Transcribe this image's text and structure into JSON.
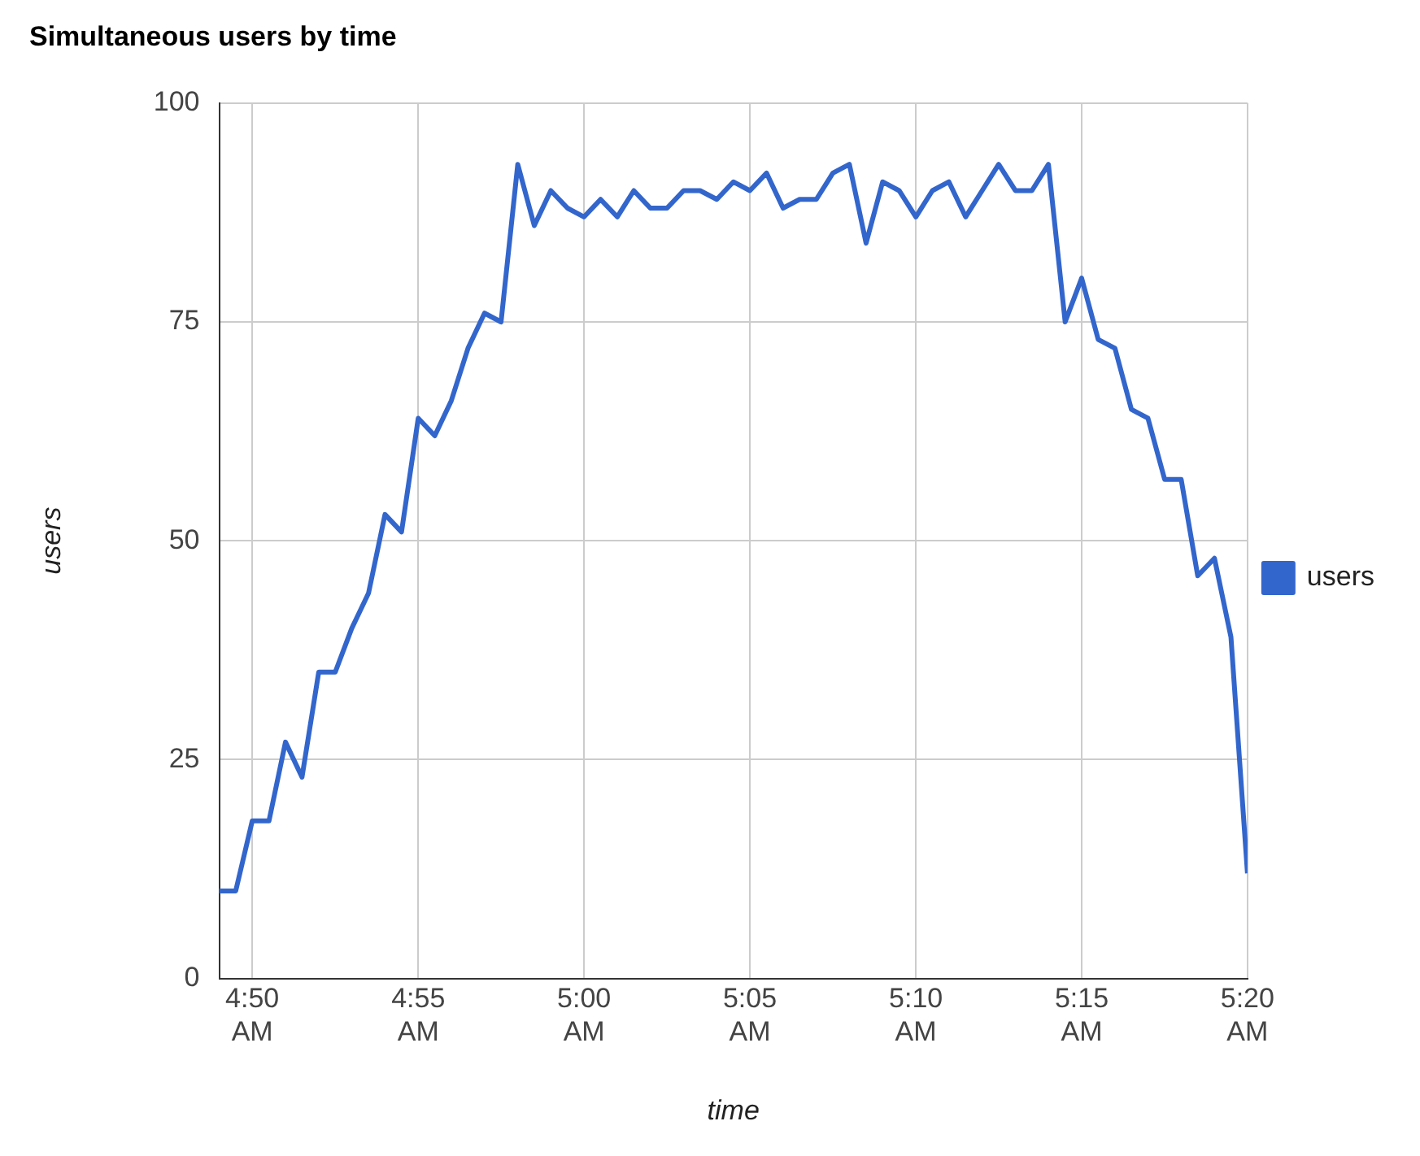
{
  "chart_data": {
    "type": "line",
    "title": "Simultaneous users by time",
    "xlabel": "time",
    "ylabel": "users",
    "x": [
      4.8167,
      4.825,
      4.8333,
      4.8417,
      4.85,
      4.8583,
      4.8667,
      4.875,
      4.8833,
      4.8917,
      4.9,
      4.9083,
      4.9167,
      4.925,
      4.9333,
      4.9417,
      4.95,
      4.9583,
      4.9667,
      4.975,
      4.9833,
      4.9917,
      5.0,
      5.0083,
      5.0167,
      5.025,
      5.0333,
      5.0417,
      5.05,
      5.0583,
      5.0667,
      5.075,
      5.0833,
      5.0917,
      5.1,
      5.1083,
      5.1167,
      5.125,
      5.1333,
      5.1417,
      5.15,
      5.1583,
      5.1667,
      5.175,
      5.1833,
      5.1917,
      5.2,
      5.2083,
      5.2167,
      5.225,
      5.2333,
      5.2417,
      5.25,
      5.2583,
      5.2667,
      5.275,
      5.2833,
      5.2917,
      5.3,
      5.3083,
      5.3167,
      5.325,
      5.3333
    ],
    "series": [
      {
        "name": "users",
        "color": "#3366cc",
        "values": [
          10,
          10,
          18,
          18,
          27,
          23,
          35,
          35,
          40,
          44,
          53,
          51,
          64,
          62,
          66,
          72,
          76,
          75,
          93,
          86,
          90,
          88,
          87,
          89,
          87,
          90,
          88,
          88,
          90,
          90,
          89,
          91,
          90,
          92,
          88,
          89,
          89,
          92,
          93,
          84,
          91,
          90,
          87,
          90,
          91,
          87,
          90,
          93,
          90,
          90,
          93,
          75,
          80,
          73,
          72,
          65,
          64,
          57,
          57,
          46,
          48,
          39,
          12
        ]
      }
    ],
    "xlim": [
      4.8167,
      5.3333
    ],
    "xticks": [
      {
        "value": 4.8333,
        "label": "4:50 AM"
      },
      {
        "value": 4.9167,
        "label": "4:55 AM"
      },
      {
        "value": 5.0,
        "label": "5:00 AM"
      },
      {
        "value": 5.0833,
        "label": "5:05 AM"
      },
      {
        "value": 5.1667,
        "label": "5:10 AM"
      },
      {
        "value": 5.25,
        "label": "5:15 AM"
      },
      {
        "value": 5.3333,
        "label": "5:20 AM"
      }
    ],
    "ylim": [
      0,
      100
    ],
    "yticks": [
      0,
      25,
      50,
      75,
      100
    ],
    "grid": true,
    "legend": "right",
    "marker": "none",
    "line_style": "solid"
  }
}
